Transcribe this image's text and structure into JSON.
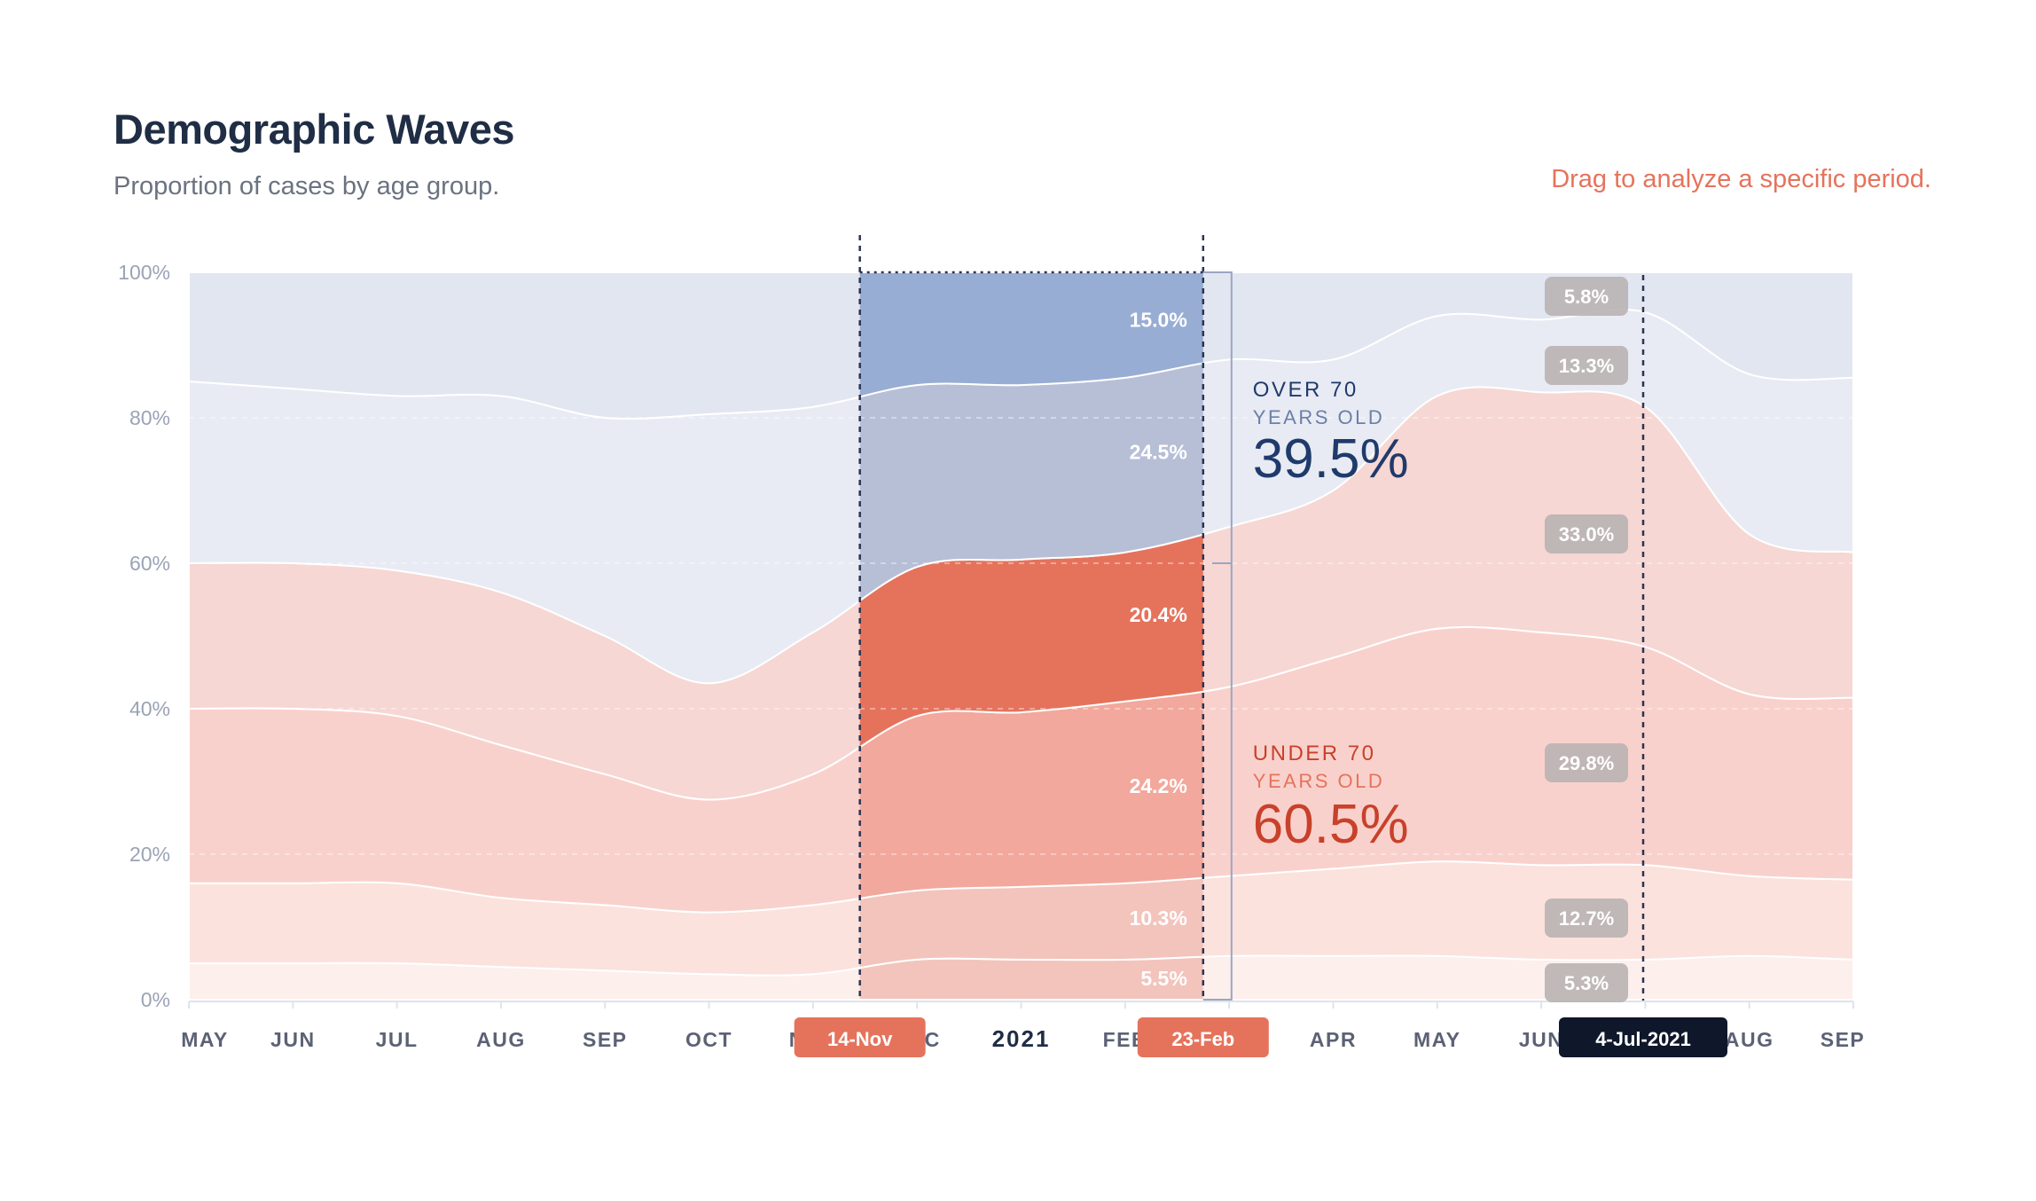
{
  "header": {
    "title": "Demographic Waves",
    "subtitle": "Proportion of cases by age group.",
    "hint": "Drag to analyze a specific period."
  },
  "chart_data": {
    "type": "area",
    "stacked": true,
    "normalized": true,
    "x": [
      "2020-05",
      "2020-06",
      "2020-07",
      "2020-08",
      "2020-09",
      "2020-10",
      "2020-11",
      "2020-12",
      "2021-01",
      "2021-02",
      "2021-03",
      "2021-04",
      "2021-05",
      "2021-06",
      "2021-07",
      "2021-08",
      "2021-09"
    ],
    "series": [
      {
        "color": "#fcefec",
        "values": [
          5,
          5,
          5,
          4.5,
          4,
          3.5,
          3.5,
          5.5,
          5.5,
          5.5,
          6,
          6,
          6,
          5.5,
          5.5,
          6,
          5.5
        ]
      },
      {
        "color": "#fbe2dd",
        "values": [
          11,
          11,
          11,
          9.5,
          9,
          8.5,
          9.5,
          9.5,
          10,
          10.5,
          11,
          12,
          13,
          13,
          13,
          11,
          11
        ]
      },
      {
        "color": "#f9d1cc",
        "values": [
          24,
          24,
          23,
          21,
          18,
          15.5,
          18,
          24,
          24,
          25,
          26,
          29,
          32,
          32,
          30,
          25,
          25
        ]
      },
      {
        "color": "#f6d7d3",
        "values": [
          20,
          20,
          20,
          21,
          19,
          16,
          19.5,
          20.5,
          21,
          20.5,
          22,
          23,
          32,
          33,
          33,
          22,
          20
        ]
      },
      {
        "color": "#e8ebf3",
        "values": [
          25,
          24,
          24,
          27,
          30,
          37,
          31,
          25,
          24,
          24,
          23,
          18,
          11,
          10,
          13,
          22,
          24
        ]
      },
      {
        "color": "#e2e6f0",
        "values": [
          15,
          16,
          17,
          17,
          20,
          19.5,
          18.5,
          15.5,
          15.5,
          14.5,
          12,
          12,
          6,
          6.5,
          5.5,
          14,
          14.5
        ]
      }
    ],
    "ylim": [
      0,
      100
    ],
    "yticks": [
      "0%",
      "20%",
      "40%",
      "60%",
      "80%",
      "100%"
    ],
    "xticks": [
      "MAY",
      "JUN",
      "JUL",
      "AUG",
      "SEP",
      "OCT",
      "NOV",
      "DEC",
      "2021",
      "FEB",
      "MAR",
      "APR",
      "MAY",
      "JUN",
      "JUL",
      "AUG",
      "SEP"
    ],
    "selection": {
      "start_label": "14-Nov",
      "end_label": "23-Feb",
      "band_labels": [
        "5.5%",
        "10.3%",
        "24.2%",
        "20.4%",
        "24.5%",
        "15.0%"
      ],
      "selected_colors": [
        "#f3c4bc",
        "#f3c4bc",
        "#f2a89c",
        "#e5735c",
        "#b7bfd7",
        "#98add3"
      ]
    },
    "hover": {
      "label": "4-Jul-2021",
      "values": [
        "5.3%",
        "12.7%",
        "29.8%",
        "33.0%",
        "13.3%",
        "5.8%"
      ]
    },
    "groups": {
      "over70": {
        "line1": "OVER 70",
        "line2": "YEARS OLD",
        "value": "39.5%",
        "color": "#1f3a6b",
        "sub_color": "#6a80a8"
      },
      "under70": {
        "line1": "UNDER 70",
        "line2": "YEARS OLD",
        "value": "60.5%",
        "color": "#c8412b",
        "sub_color": "#e5735c"
      }
    }
  }
}
